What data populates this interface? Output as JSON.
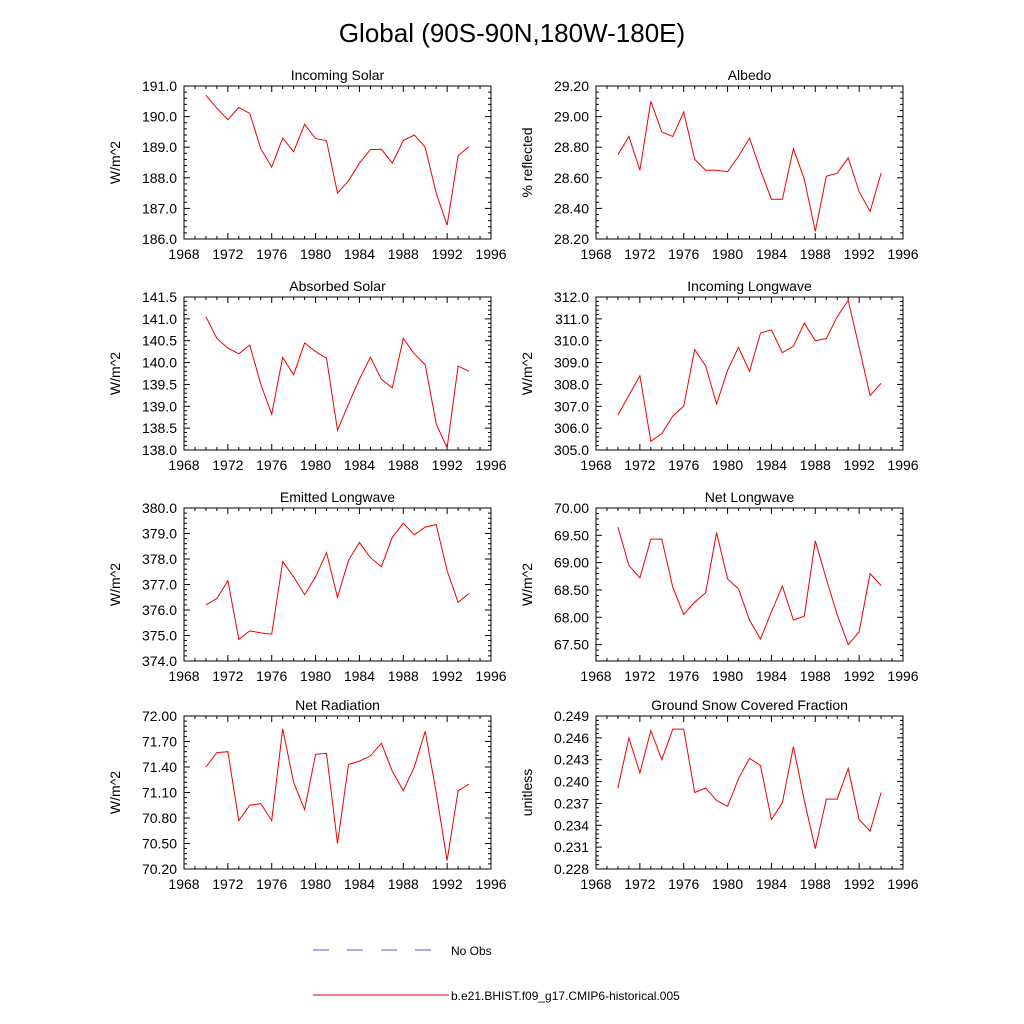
{
  "figure": {
    "title": "Global (90S-90N,180W-180E)",
    "series_color": "#ee0000",
    "noobs_color": "#5555cc",
    "legend": [
      {
        "label": "No Obs",
        "style": "dashed",
        "color": "#5555cc"
      },
      {
        "label": "b.e21.BHIST.f09_g17.CMIP6-historical.005",
        "style": "solid",
        "color": "#ee0000"
      }
    ]
  },
  "chart_data": [
    {
      "type": "line",
      "title": "Incoming Solar",
      "ylabel": "W/m^2",
      "xlim": [
        1968,
        1996
      ],
      "xticks": [
        "1968",
        "1972",
        "1976",
        "1980",
        "1984",
        "1988",
        "1992",
        "1996"
      ],
      "ylim": [
        186.0,
        191.0
      ],
      "yticks": [
        "186.0",
        "187.0",
        "188.0",
        "189.0",
        "190.0",
        "191.0"
      ],
      "x": [
        1970,
        1971,
        1972,
        1973,
        1974,
        1975,
        1976,
        1977,
        1978,
        1979,
        1980,
        1981,
        1982,
        1983,
        1984,
        1985,
        1986,
        1987,
        1988,
        1989,
        1990,
        1991,
        1992,
        1993,
        1994
      ],
      "values": [
        190.7,
        190.27,
        189.9,
        190.3,
        190.1,
        188.95,
        188.35,
        189.3,
        188.85,
        189.75,
        189.28,
        189.22,
        187.5,
        187.9,
        188.48,
        188.92,
        188.93,
        188.48,
        189.22,
        189.4,
        189.0,
        187.5,
        186.45,
        188.72,
        189.02
      ]
    },
    {
      "type": "line",
      "title": "Albedo",
      "ylabel": "% reflected",
      "xlim": [
        1968,
        1996
      ],
      "xticks": [
        "1968",
        "1972",
        "1976",
        "1980",
        "1984",
        "1988",
        "1992",
        "1996"
      ],
      "ylim": [
        28.2,
        29.2
      ],
      "yticks": [
        "28.20",
        "28.40",
        "28.60",
        "28.80",
        "29.00",
        "29.20"
      ],
      "x": [
        1970,
        1971,
        1972,
        1973,
        1974,
        1975,
        1976,
        1977,
        1978,
        1979,
        1980,
        1981,
        1982,
        1983,
        1984,
        1985,
        1986,
        1987,
        1988,
        1989,
        1990,
        1991,
        1992,
        1993,
        1994
      ],
      "values": [
        28.75,
        28.87,
        28.65,
        29.1,
        28.9,
        28.87,
        29.03,
        28.72,
        28.65,
        28.65,
        28.64,
        28.74,
        28.86,
        28.65,
        28.46,
        28.46,
        28.79,
        28.59,
        28.25,
        28.61,
        28.63,
        28.73,
        28.51,
        28.38,
        28.63
      ]
    },
    {
      "type": "line",
      "title": "Absorbed Solar",
      "ylabel": "W/m^2",
      "xlim": [
        1968,
        1996
      ],
      "xticks": [
        "1968",
        "1972",
        "1976",
        "1980",
        "1984",
        "1988",
        "1992",
        "1996"
      ],
      "ylim": [
        138.0,
        141.5
      ],
      "yticks": [
        "138.0",
        "138.5",
        "139.0",
        "139.5",
        "140.0",
        "140.5",
        "141.0",
        "141.5"
      ],
      "x": [
        1970,
        1971,
        1972,
        1973,
        1974,
        1975,
        1976,
        1977,
        1978,
        1979,
        1980,
        1981,
        1982,
        1983,
        1984,
        1985,
        1986,
        1987,
        1988,
        1989,
        1990,
        1991,
        1992,
        1993,
        1994
      ],
      "values": [
        141.05,
        140.55,
        140.33,
        140.2,
        140.4,
        139.5,
        138.82,
        140.12,
        139.72,
        140.45,
        140.25,
        140.1,
        138.45,
        139.05,
        139.62,
        140.12,
        139.62,
        139.42,
        140.55,
        140.2,
        139.95,
        138.6,
        138.05,
        139.92,
        139.8
      ]
    },
    {
      "type": "line",
      "title": "Incoming Longwave",
      "ylabel": "W/m^2",
      "xlim": [
        1968,
        1996
      ],
      "xticks": [
        "1968",
        "1972",
        "1976",
        "1980",
        "1984",
        "1988",
        "1992",
        "1996"
      ],
      "ylim": [
        305.0,
        312.0
      ],
      "yticks": [
        "305.0",
        "306.0",
        "307.0",
        "308.0",
        "309.0",
        "310.0",
        "311.0",
        "312.0"
      ],
      "x": [
        1970,
        1971,
        1972,
        1973,
        1974,
        1975,
        1976,
        1977,
        1978,
        1979,
        1980,
        1981,
        1982,
        1983,
        1984,
        1985,
        1986,
        1987,
        1988,
        1989,
        1990,
        1991,
        1992,
        1993,
        1994
      ],
      "values": [
        306.6,
        307.5,
        308.4,
        305.4,
        305.75,
        306.55,
        307.0,
        309.6,
        308.85,
        307.1,
        308.65,
        309.7,
        308.6,
        310.35,
        310.5,
        309.45,
        309.75,
        310.8,
        310.0,
        310.1,
        311.1,
        311.85,
        309.7,
        307.5,
        308.05
      ]
    },
    {
      "type": "line",
      "title": "Emitted Longwave",
      "ylabel": "W/m^2",
      "xlim": [
        1968,
        1996
      ],
      "xticks": [
        "1968",
        "1972",
        "1976",
        "1980",
        "1984",
        "1988",
        "1992",
        "1996"
      ],
      "ylim": [
        374.0,
        380.0
      ],
      "yticks": [
        "374.0",
        "375.0",
        "376.0",
        "377.0",
        "378.0",
        "379.0",
        "380.0"
      ],
      "x": [
        1970,
        1971,
        1972,
        1973,
        1974,
        1975,
        1976,
        1977,
        1978,
        1979,
        1980,
        1981,
        1982,
        1983,
        1984,
        1985,
        1986,
        1987,
        1988,
        1989,
        1990,
        1991,
        1992,
        1993,
        1994
      ],
      "values": [
        376.2,
        376.45,
        377.15,
        374.85,
        375.18,
        375.1,
        375.05,
        377.9,
        377.3,
        376.6,
        377.3,
        378.25,
        376.5,
        377.95,
        378.65,
        378.05,
        377.7,
        378.85,
        379.4,
        378.95,
        379.25,
        379.35,
        377.55,
        376.3,
        376.65
      ]
    },
    {
      "type": "line",
      "title": "Net Longwave",
      "ylabel": "W/m^2",
      "xlim": [
        1968,
        1996
      ],
      "xticks": [
        "1968",
        "1972",
        "1976",
        "1980",
        "1984",
        "1988",
        "1992",
        "1996"
      ],
      "ylim": [
        67.2,
        70.0
      ],
      "yticks": [
        "67.50",
        "68.00",
        "68.50",
        "69.00",
        "69.50",
        "70.00"
      ],
      "x": [
        1970,
        1971,
        1972,
        1973,
        1974,
        1975,
        1976,
        1977,
        1978,
        1979,
        1980,
        1981,
        1982,
        1983,
        1984,
        1985,
        1986,
        1987,
        1988,
        1989,
        1990,
        1991,
        1992,
        1993,
        1994
      ],
      "values": [
        69.65,
        68.95,
        68.72,
        69.43,
        69.43,
        68.55,
        68.05,
        68.28,
        68.45,
        69.55,
        68.7,
        68.52,
        67.95,
        67.6,
        68.1,
        68.57,
        67.95,
        68.02,
        69.4,
        68.7,
        68.05,
        67.5,
        67.73,
        68.8,
        68.58
      ]
    },
    {
      "type": "line",
      "title": "Net Radiation",
      "ylabel": "W/m^2",
      "xlim": [
        1968,
        1996
      ],
      "xticks": [
        "1968",
        "1972",
        "1976",
        "1980",
        "1984",
        "1988",
        "1992",
        "1996"
      ],
      "ylim": [
        70.2,
        72.0
      ],
      "yticks": [
        "70.20",
        "70.50",
        "70.80",
        "71.10",
        "71.40",
        "71.70",
        "72.00"
      ],
      "x": [
        1970,
        1971,
        1972,
        1973,
        1974,
        1975,
        1976,
        1977,
        1978,
        1979,
        1980,
        1981,
        1982,
        1983,
        1984,
        1985,
        1986,
        1987,
        1988,
        1989,
        1990,
        1991,
        1992,
        1993,
        1994
      ],
      "values": [
        71.4,
        71.57,
        71.58,
        70.77,
        70.95,
        70.97,
        70.77,
        71.85,
        71.22,
        70.9,
        71.55,
        71.56,
        70.5,
        71.43,
        71.47,
        71.53,
        71.68,
        71.35,
        71.12,
        71.4,
        71.82,
        71.1,
        70.3,
        71.12,
        71.2
      ]
    },
    {
      "type": "line",
      "title": "Ground Snow Covered Fraction",
      "ylabel": "unitless",
      "xlim": [
        1968,
        1996
      ],
      "xticks": [
        "1968",
        "1972",
        "1976",
        "1980",
        "1984",
        "1988",
        "1992",
        "1996"
      ],
      "ylim": [
        0.228,
        0.249
      ],
      "yticks": [
        "0.228",
        "0.231",
        "0.234",
        "0.237",
        "0.240",
        "0.243",
        "0.246",
        "0.249"
      ],
      "x": [
        1970,
        1971,
        1972,
        1973,
        1974,
        1975,
        1976,
        1977,
        1978,
        1979,
        1980,
        1981,
        1982,
        1983,
        1984,
        1985,
        1986,
        1987,
        1988,
        1989,
        1990,
        1991,
        1992,
        1993,
        1994
      ],
      "values": [
        0.2391,
        0.246,
        0.2412,
        0.247,
        0.243,
        0.2472,
        0.2472,
        0.2385,
        0.2391,
        0.2374,
        0.2366,
        0.2404,
        0.2432,
        0.2422,
        0.2348,
        0.2371,
        0.2448,
        0.2374,
        0.2308,
        0.2376,
        0.2376,
        0.2418,
        0.2348,
        0.2332,
        0.2385
      ]
    }
  ]
}
